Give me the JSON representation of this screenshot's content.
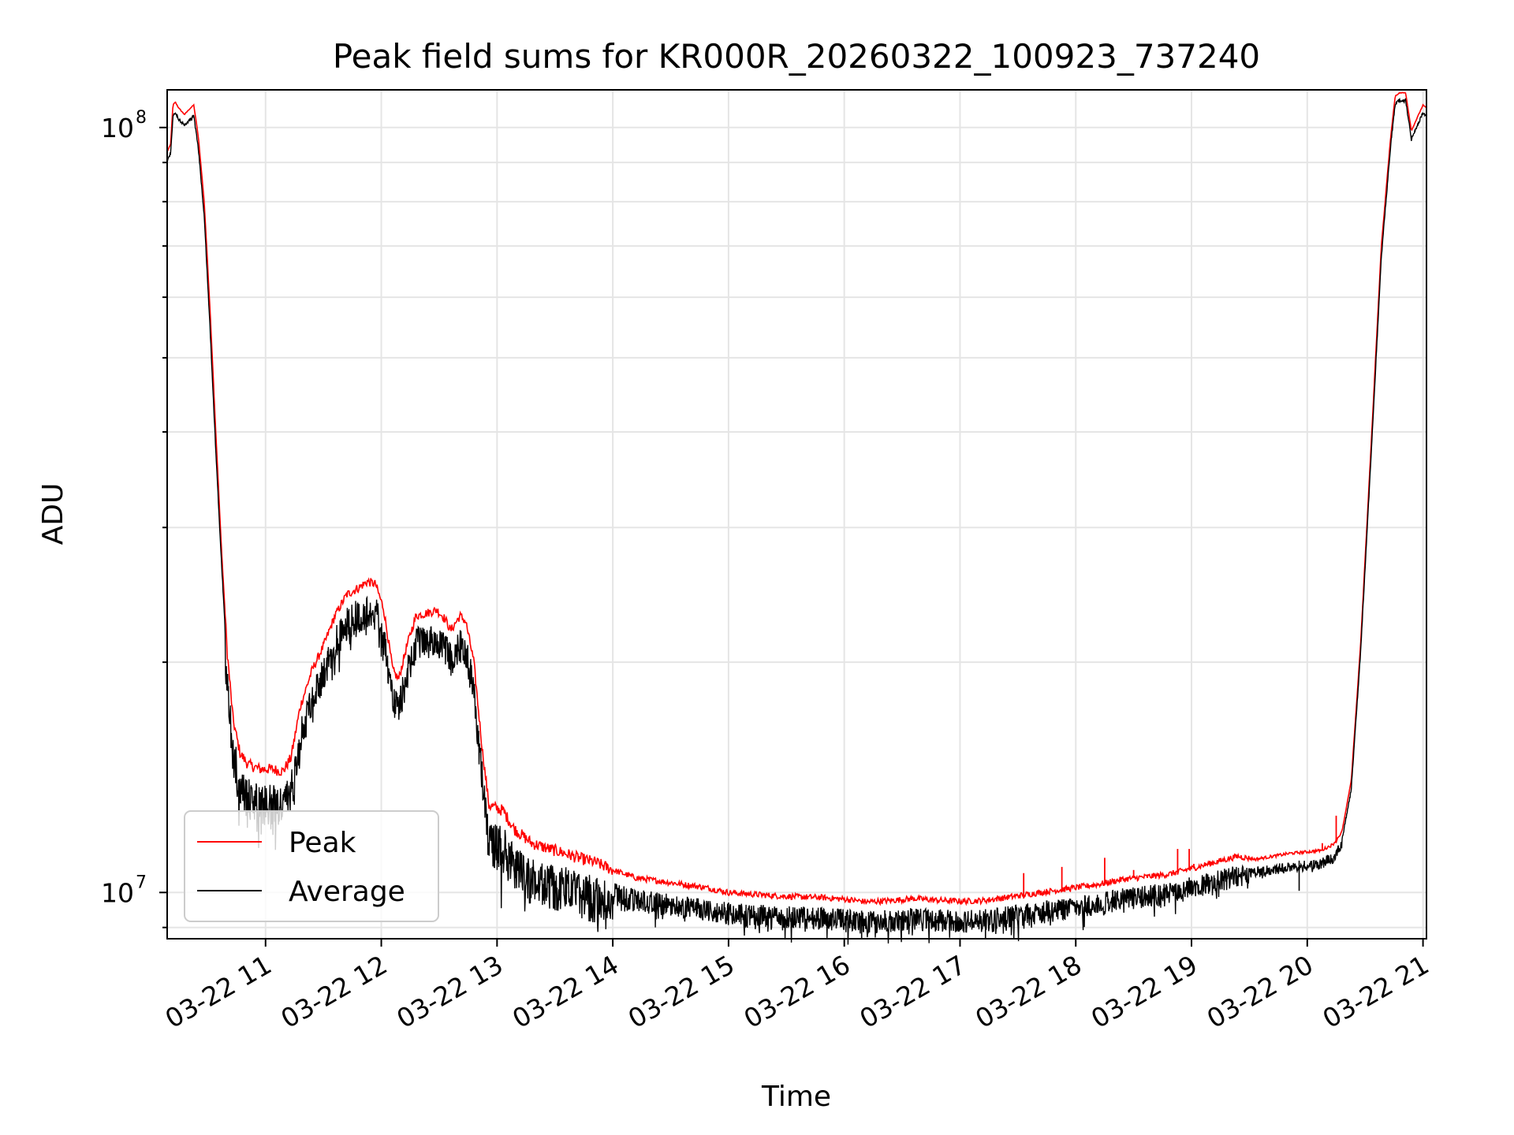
{
  "chart_data": {
    "type": "line",
    "title": "Peak field sums for KR000R_20260322_100923_737240",
    "xlabel": "Time",
    "ylabel": "ADU",
    "yscale": "log",
    "xlim": [
      10.15,
      21.03
    ],
    "ylim": [
      8700000,
      112000000
    ],
    "grid": true,
    "legend_position": "lower-left",
    "x_ticks": [
      {
        "x": 11,
        "label": "03-22 11"
      },
      {
        "x": 12,
        "label": "03-22 12"
      },
      {
        "x": 13,
        "label": "03-22 13"
      },
      {
        "x": 14,
        "label": "03-22 14"
      },
      {
        "x": 15,
        "label": "03-22 15"
      },
      {
        "x": 16,
        "label": "03-22 16"
      },
      {
        "x": 17,
        "label": "03-22 17"
      },
      {
        "x": 18,
        "label": "03-22 18"
      },
      {
        "x": 19,
        "label": "03-22 19"
      },
      {
        "x": 20,
        "label": "03-22 20"
      },
      {
        "x": 21,
        "label": "03-22 21"
      }
    ],
    "y_ticks_major": [
      {
        "value": 10000000,
        "base": "10",
        "exp": "7"
      },
      {
        "value": 100000000,
        "base": "10",
        "exp": "8"
      }
    ],
    "y_ticks_minor": [
      9000000,
      20000000,
      30000000,
      40000000,
      50000000,
      60000000,
      70000000,
      80000000,
      90000000
    ],
    "series": [
      {
        "name": "Peak",
        "color": "#ff0000",
        "points": [
          [
            10.15,
            93000000
          ],
          [
            10.18,
            95000000
          ],
          [
            10.2,
            107000000
          ],
          [
            10.22,
            108000000
          ],
          [
            10.25,
            106000000
          ],
          [
            10.3,
            104000000
          ],
          [
            10.35,
            106000000
          ],
          [
            10.38,
            107000000
          ],
          [
            10.42,
            97000000
          ],
          [
            10.47,
            80000000
          ],
          [
            10.52,
            58000000
          ],
          [
            10.57,
            40000000
          ],
          [
            10.62,
            28000000
          ],
          [
            10.67,
            20500000
          ],
          [
            10.72,
            16800000
          ],
          [
            10.78,
            15200000
          ],
          [
            10.85,
            14700000
          ],
          [
            10.95,
            14500000
          ],
          [
            11.05,
            14500000
          ],
          [
            11.15,
            14400000
          ],
          [
            11.22,
            15000000
          ],
          [
            11.3,
            17500000
          ],
          [
            11.4,
            19500000
          ],
          [
            11.5,
            21000000
          ],
          [
            11.6,
            23000000
          ],
          [
            11.7,
            24500000
          ],
          [
            11.8,
            25000000
          ],
          [
            11.88,
            25500000
          ],
          [
            11.95,
            25300000
          ],
          [
            12.02,
            23500000
          ],
          [
            12.1,
            19500000
          ],
          [
            12.15,
            19000000
          ],
          [
            12.22,
            21000000
          ],
          [
            12.3,
            23000000
          ],
          [
            12.4,
            23200000
          ],
          [
            12.48,
            23400000
          ],
          [
            12.55,
            22800000
          ],
          [
            12.6,
            22000000
          ],
          [
            12.68,
            23000000
          ],
          [
            12.73,
            22600000
          ],
          [
            12.8,
            20000000
          ],
          [
            12.87,
            15500000
          ],
          [
            12.93,
            13000000
          ],
          [
            13.05,
            12800000
          ],
          [
            13.15,
            12100000
          ],
          [
            13.3,
            11600000
          ],
          [
            13.45,
            11400000
          ],
          [
            13.55,
            11300000
          ],
          [
            13.7,
            11100000
          ],
          [
            13.85,
            10950000
          ],
          [
            14.0,
            10700000
          ],
          [
            14.2,
            10450000
          ],
          [
            14.4,
            10350000
          ],
          [
            14.6,
            10250000
          ],
          [
            14.8,
            10150000
          ],
          [
            15.0,
            10000000
          ],
          [
            15.2,
            9950000
          ],
          [
            15.4,
            9900000
          ],
          [
            15.6,
            9870000
          ],
          [
            15.8,
            9850000
          ],
          [
            16.0,
            9800000
          ],
          [
            16.2,
            9720000
          ],
          [
            16.4,
            9760000
          ],
          [
            16.6,
            9820000
          ],
          [
            16.8,
            9770000
          ],
          [
            17.0,
            9740000
          ],
          [
            17.2,
            9760000
          ],
          [
            17.4,
            9850000
          ],
          [
            17.6,
            9950000
          ],
          [
            17.8,
            10050000
          ],
          [
            18.0,
            10150000
          ],
          [
            18.2,
            10250000
          ],
          [
            18.4,
            10400000
          ],
          [
            18.6,
            10480000
          ],
          [
            18.8,
            10560000
          ],
          [
            19.0,
            10750000
          ],
          [
            19.2,
            10950000
          ],
          [
            19.4,
            11150000
          ],
          [
            19.55,
            11050000
          ],
          [
            19.7,
            11150000
          ],
          [
            19.85,
            11250000
          ],
          [
            20.0,
            11300000
          ],
          [
            20.12,
            11350000
          ],
          [
            20.22,
            11550000
          ],
          [
            20.3,
            12000000
          ],
          [
            20.38,
            14000000
          ],
          [
            20.46,
            21000000
          ],
          [
            20.55,
            38000000
          ],
          [
            20.64,
            70000000
          ],
          [
            20.72,
            97000000
          ],
          [
            20.76,
            110000000
          ],
          [
            20.8,
            111000000
          ],
          [
            20.85,
            111000000
          ],
          [
            20.9,
            99000000
          ],
          [
            20.95,
            103000000
          ],
          [
            21.0,
            107000000
          ],
          [
            21.03,
            106000000
          ]
        ]
      },
      {
        "name": "Average",
        "color": "#000000",
        "points": [
          [
            10.15,
            91000000
          ],
          [
            10.18,
            93000000
          ],
          [
            10.2,
            104000000
          ],
          [
            10.22,
            105000000
          ],
          [
            10.25,
            103000000
          ],
          [
            10.3,
            101000000
          ],
          [
            10.35,
            103000000
          ],
          [
            10.38,
            104000000
          ],
          [
            10.42,
            94000000
          ],
          [
            10.47,
            77000000
          ],
          [
            10.52,
            55000000
          ],
          [
            10.57,
            38000000
          ],
          [
            10.62,
            27000000
          ],
          [
            10.67,
            19700000
          ],
          [
            10.72,
            16200000
          ],
          [
            10.78,
            14600000
          ],
          [
            10.85,
            14100000
          ],
          [
            10.95,
            13900000
          ],
          [
            11.05,
            13900000
          ],
          [
            11.15,
            13800000
          ],
          [
            11.22,
            14400000
          ],
          [
            11.3,
            16900000
          ],
          [
            11.4,
            18800000
          ],
          [
            11.5,
            20300000
          ],
          [
            11.6,
            22200000
          ],
          [
            11.7,
            23600000
          ],
          [
            11.8,
            24200000
          ],
          [
            11.88,
            24600000
          ],
          [
            11.95,
            24400000
          ],
          [
            12.02,
            22700000
          ],
          [
            12.1,
            18700000
          ],
          [
            12.15,
            18200000
          ],
          [
            12.22,
            20200000
          ],
          [
            12.3,
            22200000
          ],
          [
            12.4,
            22400000
          ],
          [
            12.48,
            22500000
          ],
          [
            12.55,
            22000000
          ],
          [
            12.6,
            21200000
          ],
          [
            12.68,
            22200000
          ],
          [
            12.73,
            21800000
          ],
          [
            12.8,
            19200000
          ],
          [
            12.87,
            14900000
          ],
          [
            12.93,
            12500000
          ],
          [
            13.05,
            12200000
          ],
          [
            13.15,
            11600000
          ],
          [
            13.3,
            11100000
          ],
          [
            13.45,
            10900000
          ],
          [
            13.55,
            10850000
          ],
          [
            13.7,
            10650000
          ],
          [
            13.85,
            10500000
          ],
          [
            14.0,
            10300000
          ],
          [
            14.2,
            10100000
          ],
          [
            14.4,
            10000000
          ],
          [
            14.6,
            9900000
          ],
          [
            14.8,
            9820000
          ],
          [
            15.0,
            9700000
          ],
          [
            15.2,
            9650000
          ],
          [
            15.4,
            9610000
          ],
          [
            15.6,
            9590000
          ],
          [
            15.8,
            9570000
          ],
          [
            16.0,
            9520000
          ],
          [
            16.2,
            9450000
          ],
          [
            16.4,
            9490000
          ],
          [
            16.6,
            9550000
          ],
          [
            16.8,
            9510000
          ],
          [
            17.0,
            9480000
          ],
          [
            17.2,
            9500000
          ],
          [
            17.4,
            9590000
          ],
          [
            17.6,
            9690000
          ],
          [
            17.8,
            9790000
          ],
          [
            18.0,
            9890000
          ],
          [
            18.2,
            9990000
          ],
          [
            18.4,
            10140000
          ],
          [
            18.6,
            10220000
          ],
          [
            18.8,
            10300000
          ],
          [
            19.0,
            10480000
          ],
          [
            19.2,
            10680000
          ],
          [
            19.4,
            10870000
          ],
          [
            19.55,
            10780000
          ],
          [
            19.7,
            10880000
          ],
          [
            19.85,
            10980000
          ],
          [
            20.0,
            11030000
          ],
          [
            20.12,
            11080000
          ],
          [
            20.22,
            11280000
          ],
          [
            20.3,
            11750000
          ],
          [
            20.38,
            13700000
          ],
          [
            20.46,
            20600000
          ],
          [
            20.55,
            37000000
          ],
          [
            20.64,
            68000000
          ],
          [
            20.72,
            95000000
          ],
          [
            20.76,
            108000000
          ],
          [
            20.8,
            109000000
          ],
          [
            20.85,
            109000000
          ],
          [
            20.9,
            97000000
          ],
          [
            20.95,
            101000000
          ],
          [
            21.0,
            105000000
          ],
          [
            21.03,
            104000000
          ]
        ]
      }
    ],
    "peak_spikes": [
      {
        "x": 17.55,
        "top": 10600000,
        "base": 9820000
      },
      {
        "x": 17.88,
        "top": 10800000,
        "base": 10020000
      },
      {
        "x": 18.25,
        "top": 11100000,
        "base": 10220000
      },
      {
        "x": 18.5,
        "top": 10700000,
        "base": 10440000
      },
      {
        "x": 18.88,
        "top": 11400000,
        "base": 10550000
      },
      {
        "x": 18.98,
        "top": 11400000,
        "base": 10700000
      },
      {
        "x": 19.02,
        "top": 10900000,
        "base": 10750000
      },
      {
        "x": 20.13,
        "top": 11600000,
        "base": 11350000
      },
      {
        "x": 20.25,
        "top": 12600000,
        "base": 11600000
      }
    ],
    "average_dips": [
      {
        "x": 15.0,
        "low": 9250000
      },
      {
        "x": 15.3,
        "low": 9200000
      },
      {
        "x": 16.15,
        "low": 8650000
      },
      {
        "x": 16.35,
        "low": 9100000
      },
      {
        "x": 17.22,
        "low": 8700000
      },
      {
        "x": 18.98,
        "low": 10000000
      },
      {
        "x": 19.93,
        "low": 10050000
      }
    ]
  }
}
